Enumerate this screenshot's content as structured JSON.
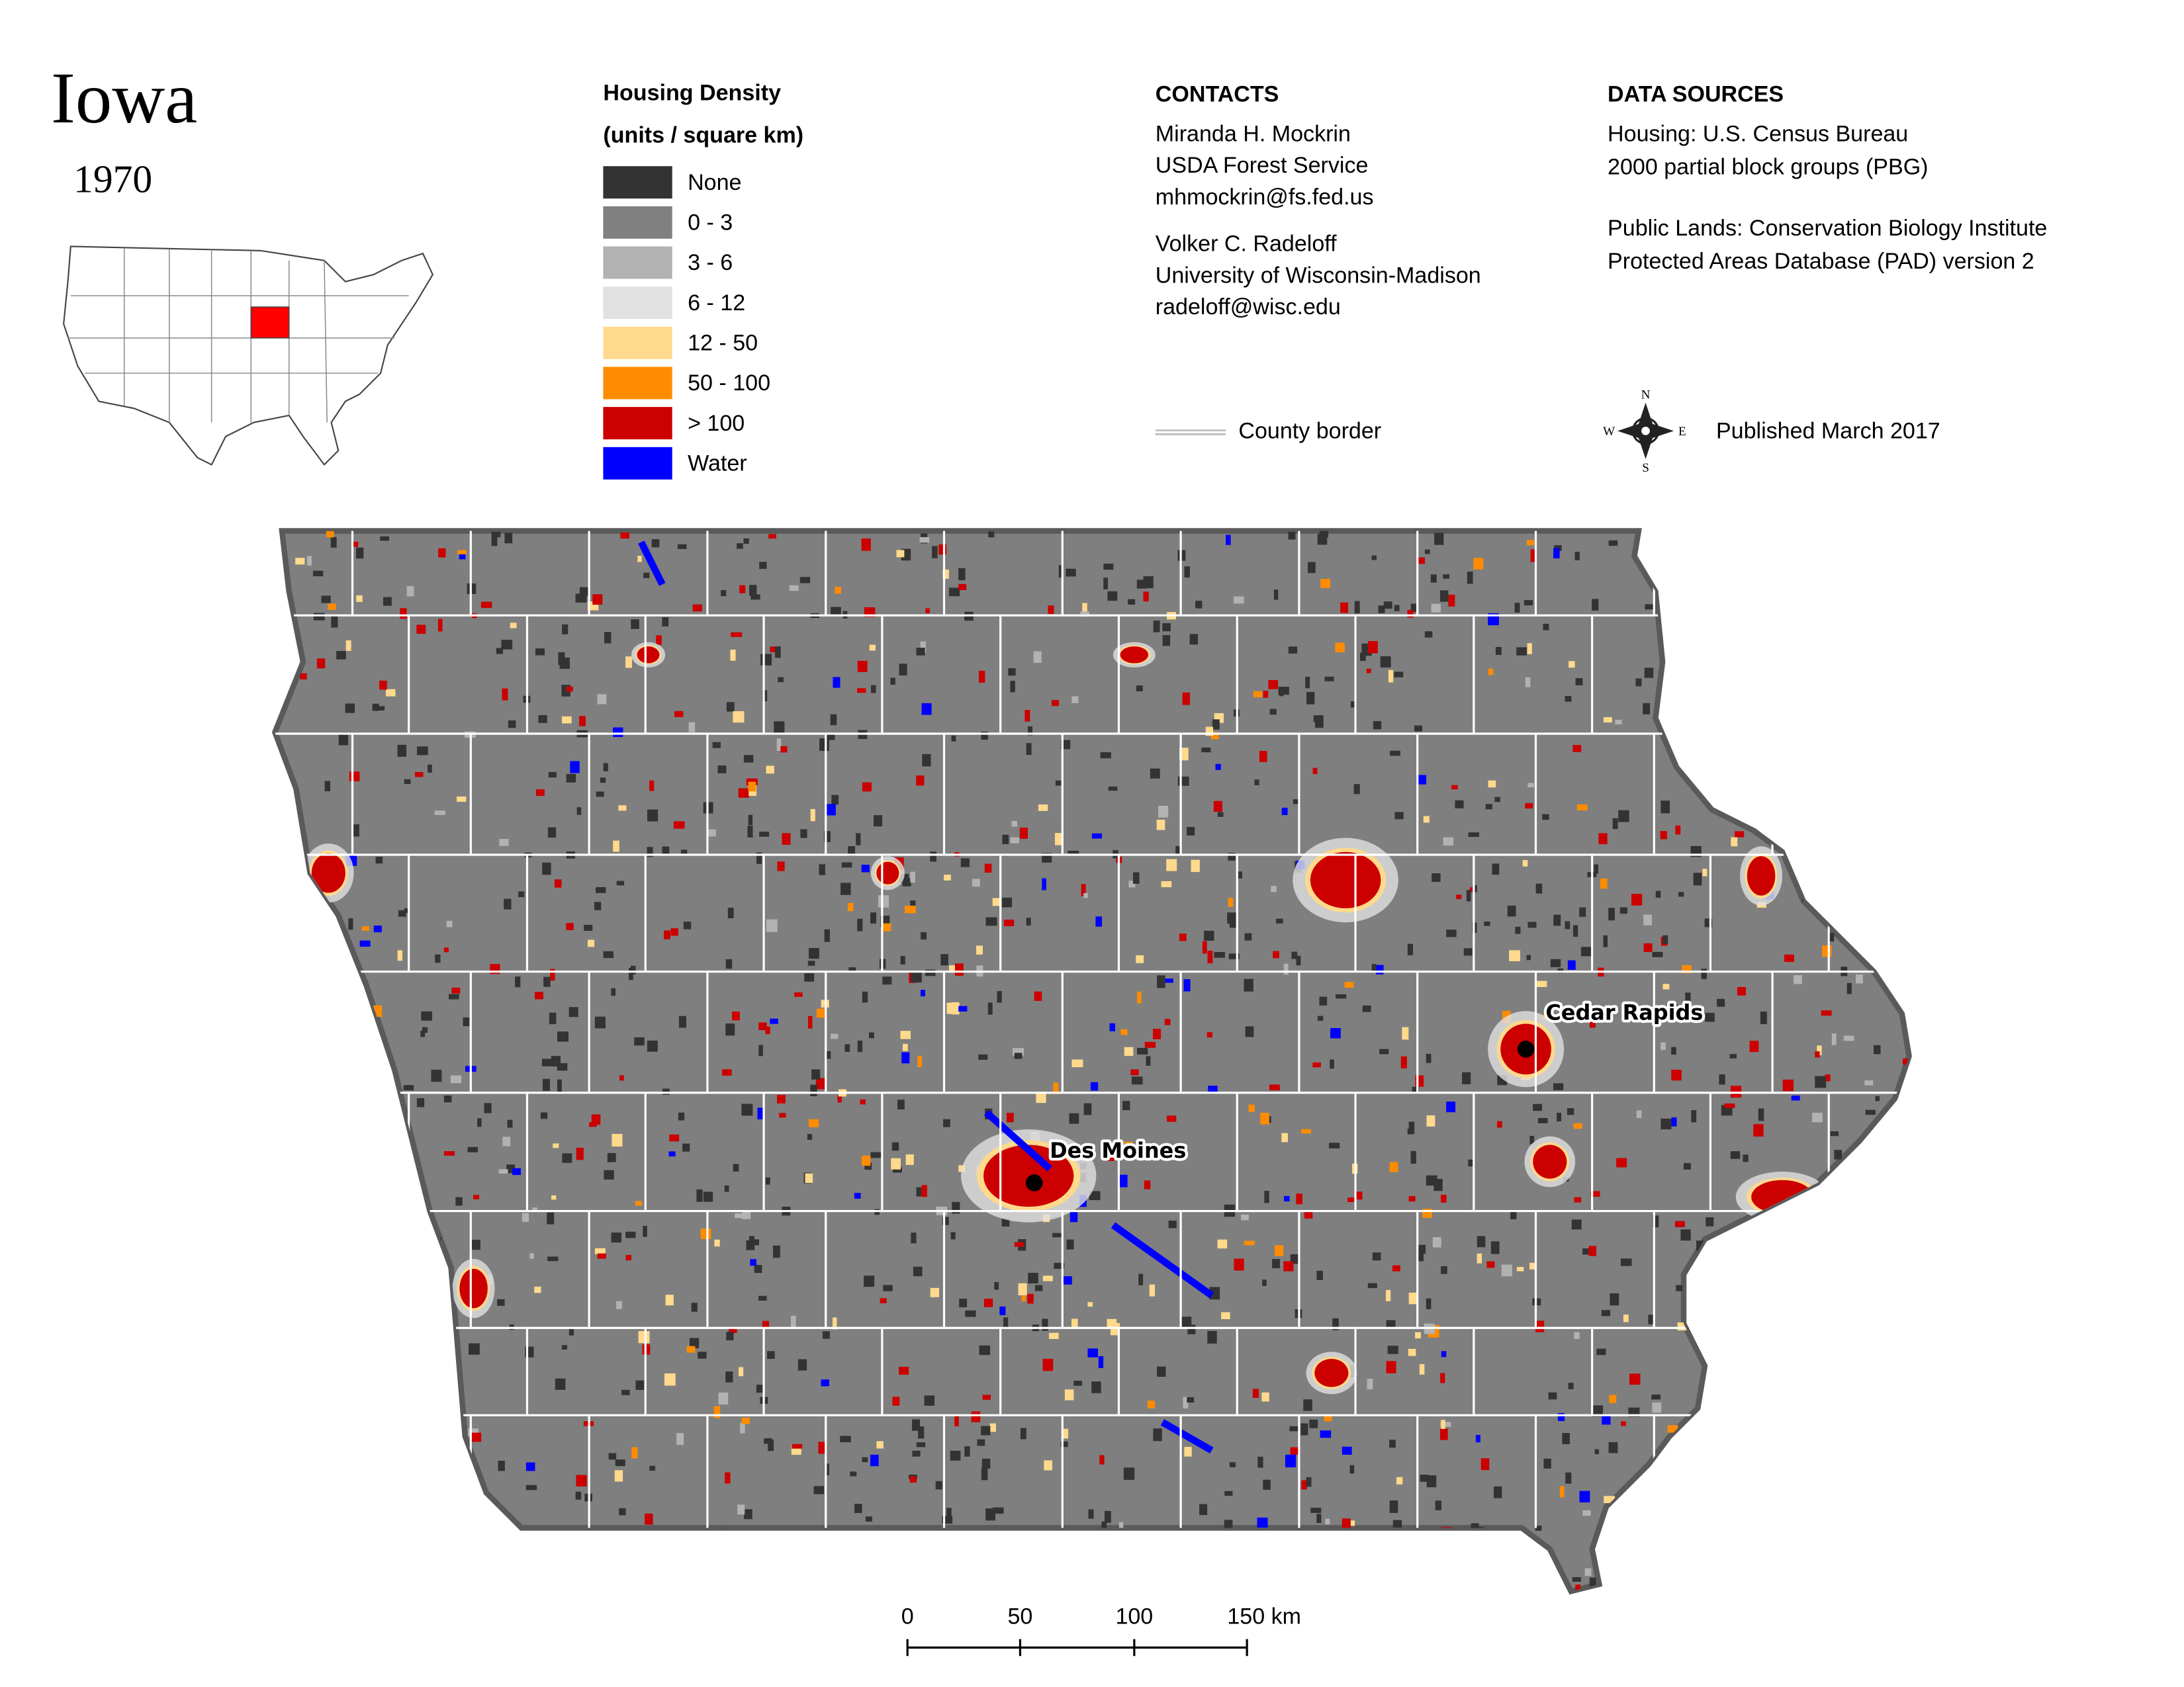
{
  "header": {
    "title": "Iowa",
    "year": "1970"
  },
  "legend": {
    "title": "Housing Density",
    "units": "(units / square km)",
    "items": [
      {
        "label": "None",
        "color": "#333333"
      },
      {
        "label": "0 - 3",
        "color": "#808080"
      },
      {
        "label": "3 - 6",
        "color": "#b2b2b2"
      },
      {
        "label": "6 - 12",
        "color": "#e1e1e1"
      },
      {
        "label": "12 - 50",
        "color": "#ffd98c"
      },
      {
        "label": "50 - 100",
        "color": "#ff8c00"
      },
      {
        "label": "> 100",
        "color": "#cc0000"
      },
      {
        "label": "Water",
        "color": "#0000ff"
      }
    ]
  },
  "contacts": {
    "heading": "CONTACTS",
    "people": [
      [
        "Miranda H. Mockrin",
        "USDA Forest Service",
        "mhmockrin@fs.fed.us"
      ],
      [
        "Volker C. Radeloff",
        "University of Wisconsin-Madison",
        "radeloff@wisc.edu"
      ]
    ]
  },
  "data_sources": {
    "heading": "DATA SOURCES",
    "groups": [
      [
        "Housing: U.S. Census Bureau",
        "2000 partial block groups (PBG)"
      ],
      [
        "Public Lands: Conservation Biology Institute",
        "Protected Areas Database (PAD) version 2"
      ]
    ]
  },
  "county_border": "County border",
  "compass": {
    "n": "N",
    "e": "E",
    "s": "S",
    "w": "W"
  },
  "published": "Published March 2017",
  "map": {
    "cities": [
      "Des Moines",
      "Cedar Rapids"
    ]
  },
  "scale_bar": {
    "labels": [
      "0",
      "50",
      "100",
      "150 km"
    ]
  }
}
